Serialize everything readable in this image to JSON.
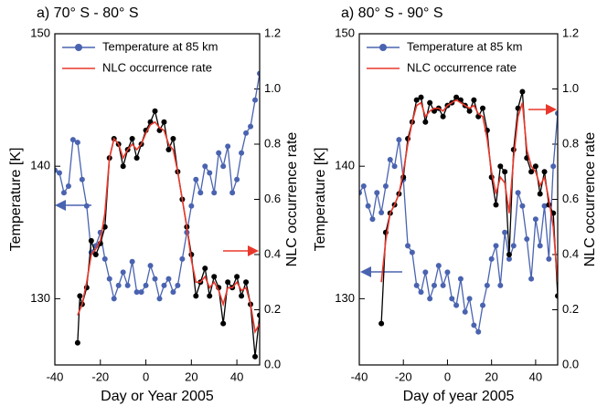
{
  "chart_data": [
    {
      "type": "line",
      "title": "a) 70° S - 80° S",
      "xlabel": "Day or Year 2005",
      "ylabel": "Temperature [K]",
      "y2label": "NLC occurrence rate",
      "xlim": [
        -40,
        50
      ],
      "xticks": [
        -40,
        -20,
        0,
        20,
        40
      ],
      "ylim": [
        125,
        150
      ],
      "yticks": [
        130,
        140,
        150
      ],
      "y2lim": [
        0,
        1.2
      ],
      "y2ticks": [
        {
          "value": 0,
          "label": "0.0"
        },
        0.2,
        0.4,
        0.6,
        0.8,
        {
          "value": 1,
          "label": "1.0"
        },
        1.2
      ],
      "series": [
        {
          "name": "Temperature at 85 km",
          "color": "#4a63b0",
          "markers": true,
          "x": [
            -40,
            -38,
            -36,
            -34,
            -32,
            -30,
            -28,
            -26,
            -24,
            -22,
            -20,
            -18,
            -16,
            -14,
            -12,
            -10,
            -8,
            -6,
            -4,
            -2,
            0,
            2,
            4,
            6,
            8,
            10,
            12,
            14,
            16,
            18,
            20,
            22,
            24,
            26,
            28,
            30,
            32,
            34,
            36,
            38,
            40,
            42,
            44,
            46,
            48,
            50
          ],
          "values": [
            139.7,
            139.5,
            138,
            138.5,
            142,
            141.8,
            139,
            137,
            133.5,
            134,
            135,
            133,
            131.5,
            130,
            131,
            132,
            131,
            132.8,
            130.5,
            130.5,
            131,
            132.5,
            131.5,
            130,
            131,
            131.5,
            130.5,
            131,
            133,
            135,
            137,
            139,
            138,
            140,
            139.5,
            138,
            141,
            140,
            141.5,
            138,
            139,
            141,
            142.5,
            143,
            145,
            147
          ]
        },
        {
          "color": "#000000",
          "markers": true,
          "axis": "y2",
          "x": [
            -30,
            -29,
            -28,
            -26,
            -24,
            -22,
            -20,
            -18,
            -16,
            -14,
            -12,
            -10,
            -8,
            -6,
            -4,
            -2,
            0,
            2,
            4,
            6,
            8,
            10,
            12,
            14,
            16,
            18,
            20,
            22,
            24,
            26,
            28,
            30,
            32,
            34,
            36,
            38,
            40,
            42,
            44,
            46,
            48,
            50
          ],
          "values": [
            0.08,
            0.25,
            0.22,
            0.28,
            0.45,
            0.4,
            0.44,
            0.5,
            0.75,
            0.82,
            0.8,
            0.72,
            0.78,
            0.82,
            0.75,
            0.8,
            0.85,
            0.88,
            0.92,
            0.85,
            0.88,
            0.78,
            0.82,
            0.7,
            0.6,
            0.5,
            0.4,
            0.25,
            0.3,
            0.35,
            0.25,
            0.32,
            0.28,
            0.15,
            0.3,
            0.28,
            0.32,
            0.25,
            0.3,
            0.22,
            0.03,
            0.18
          ]
        },
        {
          "name": "NLC occurrence rate",
          "color": "#e8382b",
          "markers": false,
          "axis": "y2",
          "x": [
            -30,
            -28,
            -26,
            -24,
            -22,
            -20,
            -18,
            -16,
            -14,
            -12,
            -10,
            -8,
            -6,
            -4,
            -2,
            0,
            2,
            4,
            6,
            8,
            10,
            12,
            14,
            16,
            18,
            20,
            22,
            24,
            26,
            28,
            30,
            32,
            34,
            36,
            38,
            40,
            42,
            44,
            46,
            48,
            50
          ],
          "values": [
            0.18,
            0.22,
            0.3,
            0.4,
            0.42,
            0.45,
            0.55,
            0.75,
            0.82,
            0.8,
            0.75,
            0.78,
            0.8,
            0.78,
            0.8,
            0.84,
            0.87,
            0.88,
            0.86,
            0.85,
            0.8,
            0.78,
            0.7,
            0.6,
            0.5,
            0.38,
            0.3,
            0.3,
            0.32,
            0.28,
            0.3,
            0.27,
            0.22,
            0.28,
            0.28,
            0.3,
            0.27,
            0.28,
            0.22,
            0.12,
            0.15
          ]
        }
      ]
    },
    {
      "type": "line",
      "title": "a) 80° S - 90° S",
      "xlabel": "Day of year 2005",
      "ylabel": "Temperature [K]",
      "y2label": "NLC occurrence rate",
      "xlim": [
        -40,
        50
      ],
      "xticks": [
        -40,
        -20,
        0,
        20,
        40
      ],
      "ylim": [
        125,
        150
      ],
      "yticks": [
        130,
        140,
        150
      ],
      "y2lim": [
        0,
        1.2
      ],
      "y2ticks": [
        {
          "value": 0,
          "label": "0.0"
        },
        0.2,
        0.4,
        0.6,
        0.8,
        {
          "value": 1,
          "label": "1.0"
        },
        1.2
      ],
      "series": [
        {
          "name": "Temperature at 85 km",
          "color": "#4a63b0",
          "markers": true,
          "x": [
            -40,
            -38,
            -36,
            -34,
            -32,
            -30,
            -28,
            -26,
            -24,
            -22,
            -20,
            -18,
            -16,
            -14,
            -12,
            -10,
            -8,
            -6,
            -4,
            -2,
            0,
            2,
            4,
            6,
            8,
            10,
            12,
            14,
            16,
            18,
            20,
            22,
            24,
            26,
            28,
            30,
            32,
            34,
            36,
            38,
            40,
            42,
            44,
            46,
            48,
            50
          ],
          "values": [
            138,
            138.5,
            137,
            136,
            138,
            136.5,
            138.5,
            140.5,
            140,
            142,
            139,
            134,
            133.5,
            131,
            130.5,
            132,
            130,
            131,
            132.5,
            131,
            132,
            130,
            129.5,
            131.5,
            129,
            130,
            128,
            127.5,
            129.5,
            131,
            133,
            134,
            131,
            135,
            133,
            134,
            138,
            137,
            134.5,
            131.5,
            136,
            134,
            137,
            133,
            140,
            144
          ]
        },
        {
          "color": "#000000",
          "markers": true,
          "axis": "y2",
          "x": [
            -30,
            -28,
            -26,
            -24,
            -22,
            -20,
            -18,
            -16,
            -14,
            -12,
            -10,
            -8,
            -6,
            -4,
            -2,
            0,
            2,
            4,
            6,
            8,
            10,
            12,
            14,
            16,
            18,
            20,
            22,
            24,
            26,
            28,
            30,
            32,
            34,
            36,
            38,
            40,
            42,
            44,
            46,
            48,
            50
          ],
          "values": [
            0.15,
            0.48,
            0.55,
            0.58,
            0.62,
            0.68,
            0.82,
            0.88,
            0.96,
            0.97,
            0.88,
            0.95,
            0.92,
            0.93,
            0.9,
            0.94,
            0.95,
            0.97,
            0.96,
            0.94,
            0.92,
            0.96,
            0.9,
            0.93,
            0.85,
            0.68,
            0.58,
            0.72,
            0.7,
            0.4,
            0.78,
            0.93,
            0.99,
            0.75,
            0.7,
            0.72,
            0.62,
            0.7,
            0.58,
            0.55,
            0.25
          ]
        },
        {
          "name": "NLC occurrence rate",
          "color": "#e8382b",
          "markers": false,
          "axis": "y2",
          "x": [
            -30,
            -28,
            -26,
            -24,
            -22,
            -20,
            -18,
            -16,
            -14,
            -12,
            -10,
            -8,
            -6,
            -4,
            -2,
            0,
            2,
            4,
            6,
            8,
            10,
            12,
            14,
            16,
            18,
            20,
            22,
            24,
            26,
            28,
            30,
            32,
            34,
            36,
            38,
            40,
            42,
            44,
            46,
            48,
            50
          ],
          "values": [
            0.3,
            0.45,
            0.55,
            0.58,
            0.62,
            0.7,
            0.8,
            0.88,
            0.94,
            0.95,
            0.9,
            0.92,
            0.93,
            0.93,
            0.92,
            0.94,
            0.95,
            0.96,
            0.95,
            0.94,
            0.93,
            0.94,
            0.91,
            0.9,
            0.82,
            0.7,
            0.62,
            0.68,
            0.66,
            0.55,
            0.75,
            0.9,
            0.95,
            0.78,
            0.72,
            0.7,
            0.65,
            0.68,
            0.6,
            0.5,
            0.3
          ]
        }
      ]
    }
  ]
}
